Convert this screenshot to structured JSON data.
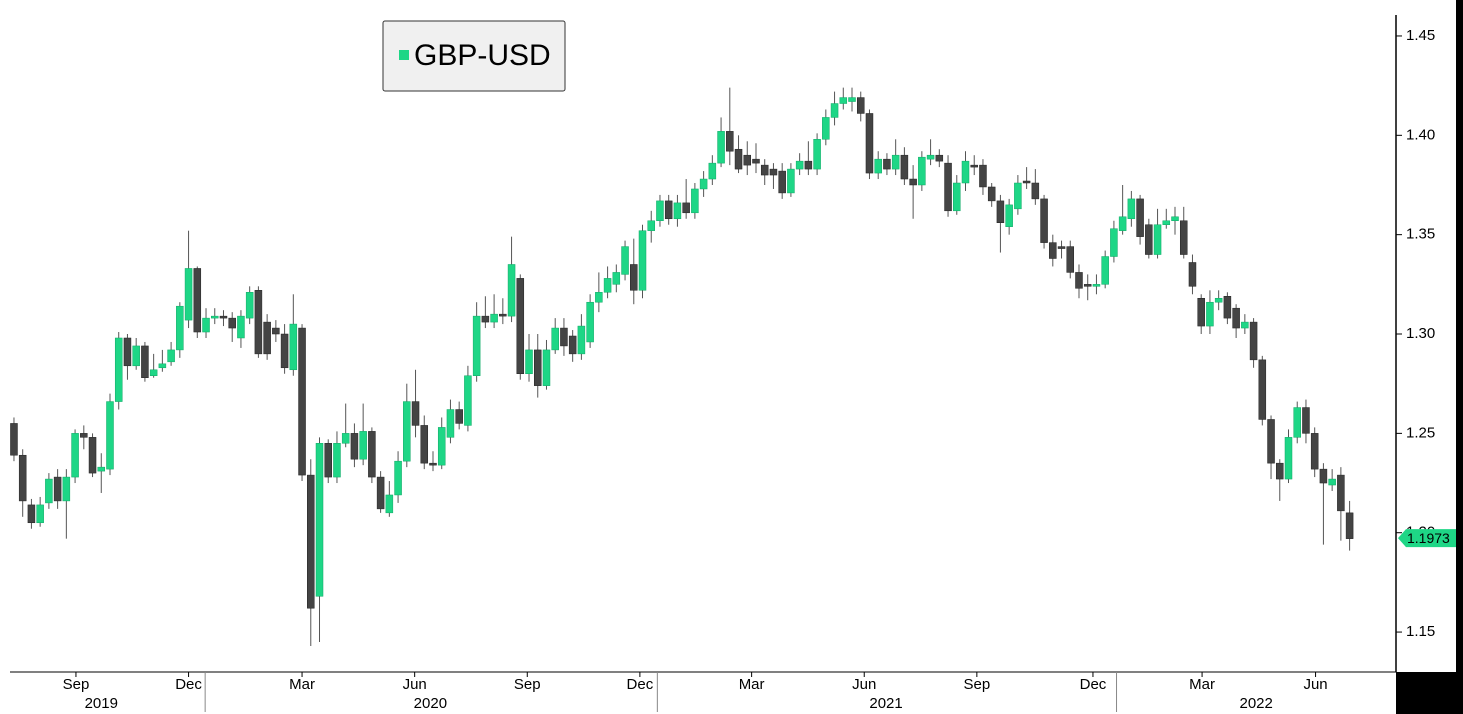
{
  "chart_data": {
    "type": "candlestick",
    "name": "GBP-USD",
    "up_color": "#1ed686",
    "down_color": "#444444",
    "open": [
      1.255,
      1.239,
      1.214,
      1.205,
      1.215,
      1.228,
      1.216,
      1.228,
      1.25,
      1.248,
      1.231,
      1.232,
      1.266,
      1.298,
      1.284,
      1.294,
      1.279,
      1.283,
      1.286,
      1.292,
      1.307,
      1.333,
      1.301,
      1.308,
      1.309,
      1.308,
      1.298,
      1.308,
      1.322,
      1.306,
      1.303,
      1.3,
      1.282,
      1.303,
      1.229,
      1.168,
      1.245,
      1.228,
      1.245,
      1.25,
      1.237,
      1.251,
      1.228,
      1.21,
      1.219,
      1.236,
      1.266,
      1.254,
      1.235,
      1.234,
      1.248,
      1.262,
      1.254,
      1.279,
      1.309,
      1.306,
      1.31,
      1.309,
      1.328,
      1.28,
      1.292,
      1.274,
      1.292,
      1.303,
      1.299,
      1.29,
      1.296,
      1.316,
      1.321,
      1.325,
      1.33,
      1.335,
      1.322,
      1.352,
      1.357,
      1.367,
      1.358,
      1.366,
      1.361,
      1.373,
      1.378,
      1.386,
      1.402,
      1.393,
      1.39,
      1.388,
      1.385,
      1.383,
      1.382,
      1.371,
      1.383,
      1.387,
      1.383,
      1.398,
      1.409,
      1.416,
      1.417,
      1.419,
      1.411,
      1.381,
      1.388,
      1.383,
      1.39,
      1.378,
      1.375,
      1.388,
      1.39,
      1.386,
      1.362,
      1.376,
      1.385,
      1.385,
      1.374,
      1.367,
      1.354,
      1.363,
      1.377,
      1.376,
      1.368,
      1.346,
      1.344,
      1.344,
      1.331,
      1.325,
      1.324,
      1.325,
      1.339,
      1.352,
      1.358,
      1.368,
      1.355,
      1.34,
      1.355,
      1.357,
      1.357,
      1.336,
      1.318,
      1.304,
      1.316,
      1.319,
      1.313,
      1.303,
      1.306,
      1.287,
      1.257,
      1.235,
      1.227,
      1.248,
      1.263,
      1.25,
      1.232,
      1.224,
      1.229,
      1.21
    ],
    "high": [
      1.258,
      1.242,
      1.217,
      1.218,
      1.23,
      1.232,
      1.232,
      1.252,
      1.254,
      1.25,
      1.24,
      1.27,
      1.301,
      1.3,
      1.298,
      1.296,
      1.29,
      1.292,
      1.296,
      1.316,
      1.352,
      1.334,
      1.313,
      1.313,
      1.312,
      1.311,
      1.312,
      1.324,
      1.324,
      1.31,
      1.307,
      1.305,
      1.32,
      1.305,
      1.237,
      1.248,
      1.247,
      1.251,
      1.265,
      1.255,
      1.265,
      1.253,
      1.231,
      1.226,
      1.241,
      1.275,
      1.282,
      1.259,
      1.241,
      1.258,
      1.267,
      1.266,
      1.284,
      1.316,
      1.319,
      1.32,
      1.318,
      1.349,
      1.33,
      1.3,
      1.3,
      1.297,
      1.308,
      1.308,
      1.302,
      1.31,
      1.32,
      1.331,
      1.334,
      1.335,
      1.347,
      1.348,
      1.355,
      1.362,
      1.37,
      1.37,
      1.37,
      1.378,
      1.376,
      1.382,
      1.39,
      1.409,
      1.424,
      1.4,
      1.397,
      1.396,
      1.388,
      1.386,
      1.386,
      1.386,
      1.391,
      1.397,
      1.401,
      1.413,
      1.422,
      1.424,
      1.424,
      1.422,
      1.413,
      1.392,
      1.391,
      1.398,
      1.394,
      1.385,
      1.392,
      1.398,
      1.393,
      1.39,
      1.38,
      1.392,
      1.39,
      1.388,
      1.376,
      1.37,
      1.368,
      1.38,
      1.384,
      1.383,
      1.37,
      1.35,
      1.347,
      1.347,
      1.335,
      1.33,
      1.33,
      1.342,
      1.357,
      1.375,
      1.372,
      1.37,
      1.358,
      1.363,
      1.363,
      1.364,
      1.364,
      1.34,
      1.32,
      1.322,
      1.322,
      1.321,
      1.315,
      1.31,
      1.308,
      1.289,
      1.259,
      1.237,
      1.252,
      1.266,
      1.267,
      1.253,
      1.235,
      1.232,
      1.233,
      1.216
    ],
    "low": [
      1.236,
      1.208,
      1.202,
      1.203,
      1.212,
      1.212,
      1.197,
      1.225,
      1.242,
      1.228,
      1.22,
      1.229,
      1.262,
      1.277,
      1.282,
      1.276,
      1.278,
      1.281,
      1.284,
      1.288,
      1.303,
      1.298,
      1.298,
      1.305,
      1.304,
      1.296,
      1.293,
      1.305,
      1.288,
      1.287,
      1.296,
      1.28,
      1.279,
      1.226,
      1.143,
      1.145,
      1.225,
      1.225,
      1.243,
      1.233,
      1.234,
      1.225,
      1.21,
      1.208,
      1.215,
      1.233,
      1.248,
      1.232,
      1.231,
      1.232,
      1.245,
      1.252,
      1.251,
      1.276,
      1.303,
      1.303,
      1.305,
      1.306,
      1.277,
      1.276,
      1.268,
      1.272,
      1.29,
      1.289,
      1.286,
      1.287,
      1.293,
      1.311,
      1.318,
      1.321,
      1.327,
      1.315,
      1.318,
      1.346,
      1.354,
      1.355,
      1.354,
      1.358,
      1.358,
      1.369,
      1.375,
      1.384,
      1.385,
      1.381,
      1.38,
      1.381,
      1.375,
      1.373,
      1.368,
      1.369,
      1.38,
      1.38,
      1.38,
      1.395,
      1.405,
      1.413,
      1.412,
      1.407,
      1.378,
      1.378,
      1.38,
      1.38,
      1.375,
      1.358,
      1.372,
      1.385,
      1.384,
      1.359,
      1.36,
      1.372,
      1.38,
      1.37,
      1.364,
      1.341,
      1.35,
      1.36,
      1.373,
      1.365,
      1.343,
      1.334,
      1.338,
      1.328,
      1.318,
      1.317,
      1.32,
      1.323,
      1.336,
      1.35,
      1.354,
      1.345,
      1.338,
      1.338,
      1.353,
      1.35,
      1.338,
      1.32,
      1.3,
      1.3,
      1.312,
      1.305,
      1.298,
      1.3,
      1.283,
      1.254,
      1.227,
      1.216,
      1.225,
      1.245,
      1.245,
      1.228,
      1.194,
      1.221,
      1.196,
      1.191
    ],
    "close": [
      1.239,
      1.216,
      1.205,
      1.214,
      1.227,
      1.216,
      1.228,
      1.25,
      1.248,
      1.23,
      1.233,
      1.266,
      1.298,
      1.284,
      1.294,
      1.278,
      1.282,
      1.285,
      1.292,
      1.314,
      1.333,
      1.301,
      1.308,
      1.309,
      1.308,
      1.303,
      1.309,
      1.321,
      1.29,
      1.29,
      1.3,
      1.283,
      1.305,
      1.229,
      1.162,
      1.245,
      1.228,
      1.245,
      1.25,
      1.237,
      1.251,
      1.228,
      1.212,
      1.219,
      1.236,
      1.266,
      1.254,
      1.235,
      1.234,
      1.253,
      1.262,
      1.255,
      1.279,
      1.309,
      1.306,
      1.31,
      1.309,
      1.335,
      1.28,
      1.292,
      1.274,
      1.292,
      1.303,
      1.294,
      1.29,
      1.304,
      1.316,
      1.321,
      1.328,
      1.331,
      1.344,
      1.322,
      1.352,
      1.357,
      1.367,
      1.358,
      1.366,
      1.361,
      1.373,
      1.378,
      1.386,
      1.402,
      1.392,
      1.383,
      1.385,
      1.386,
      1.38,
      1.38,
      1.371,
      1.383,
      1.387,
      1.383,
      1.398,
      1.409,
      1.416,
      1.419,
      1.419,
      1.411,
      1.381,
      1.388,
      1.383,
      1.39,
      1.378,
      1.375,
      1.389,
      1.39,
      1.387,
      1.362,
      1.376,
      1.387,
      1.384,
      1.374,
      1.367,
      1.356,
      1.365,
      1.376,
      1.376,
      1.368,
      1.346,
      1.338,
      1.343,
      1.331,
      1.323,
      1.324,
      1.325,
      1.339,
      1.353,
      1.359,
      1.368,
      1.349,
      1.34,
      1.355,
      1.357,
      1.359,
      1.34,
      1.324,
      1.304,
      1.316,
      1.318,
      1.308,
      1.303,
      1.306,
      1.287,
      1.257,
      1.235,
      1.227,
      1.248,
      1.263,
      1.25,
      1.232,
      1.225,
      1.227,
      1.211,
      1.197
    ],
    "last_value": 1.1973,
    "xlim": [
      -1.6,
      158.2
    ],
    "ylim": [
      1.1299,
      1.4681
    ],
    "yticks": [
      1.15,
      {
        "value": 1.2,
        "label": "1.20"
      },
      1.25,
      {
        "value": 1.3,
        "label": "1.30"
      },
      1.35,
      {
        "value": 1.4,
        "label": "1.40"
      },
      1.45
    ],
    "xticks": [
      {
        "value": 7.1,
        "label": "Sep"
      },
      {
        "value": 20.0,
        "label": "Dec"
      },
      {
        "value": 33.0,
        "label": "Mar"
      },
      {
        "value": 45.9,
        "label": "Jun"
      },
      {
        "value": 58.8,
        "label": "Sep"
      },
      {
        "value": 71.7,
        "label": "Dec"
      },
      {
        "value": 84.5,
        "label": "Mar"
      },
      {
        "value": 97.4,
        "label": "Jun"
      },
      {
        "value": 110.3,
        "label": "Sep"
      },
      {
        "value": 123.6,
        "label": "Dec"
      },
      {
        "value": 136.1,
        "label": "Mar"
      },
      {
        "value": 149.1,
        "label": "Jun"
      }
    ],
    "year_ticks": [
      {
        "value": 10,
        "label": "2019"
      },
      {
        "value": 47.7,
        "label": "2020"
      },
      {
        "value": 99.9,
        "label": "2021"
      },
      {
        "value": 142.3,
        "label": "2022"
      }
    ],
    "year_separators": [
      21.9,
      73.7,
      126.3
    ],
    "grid": false
  }
}
